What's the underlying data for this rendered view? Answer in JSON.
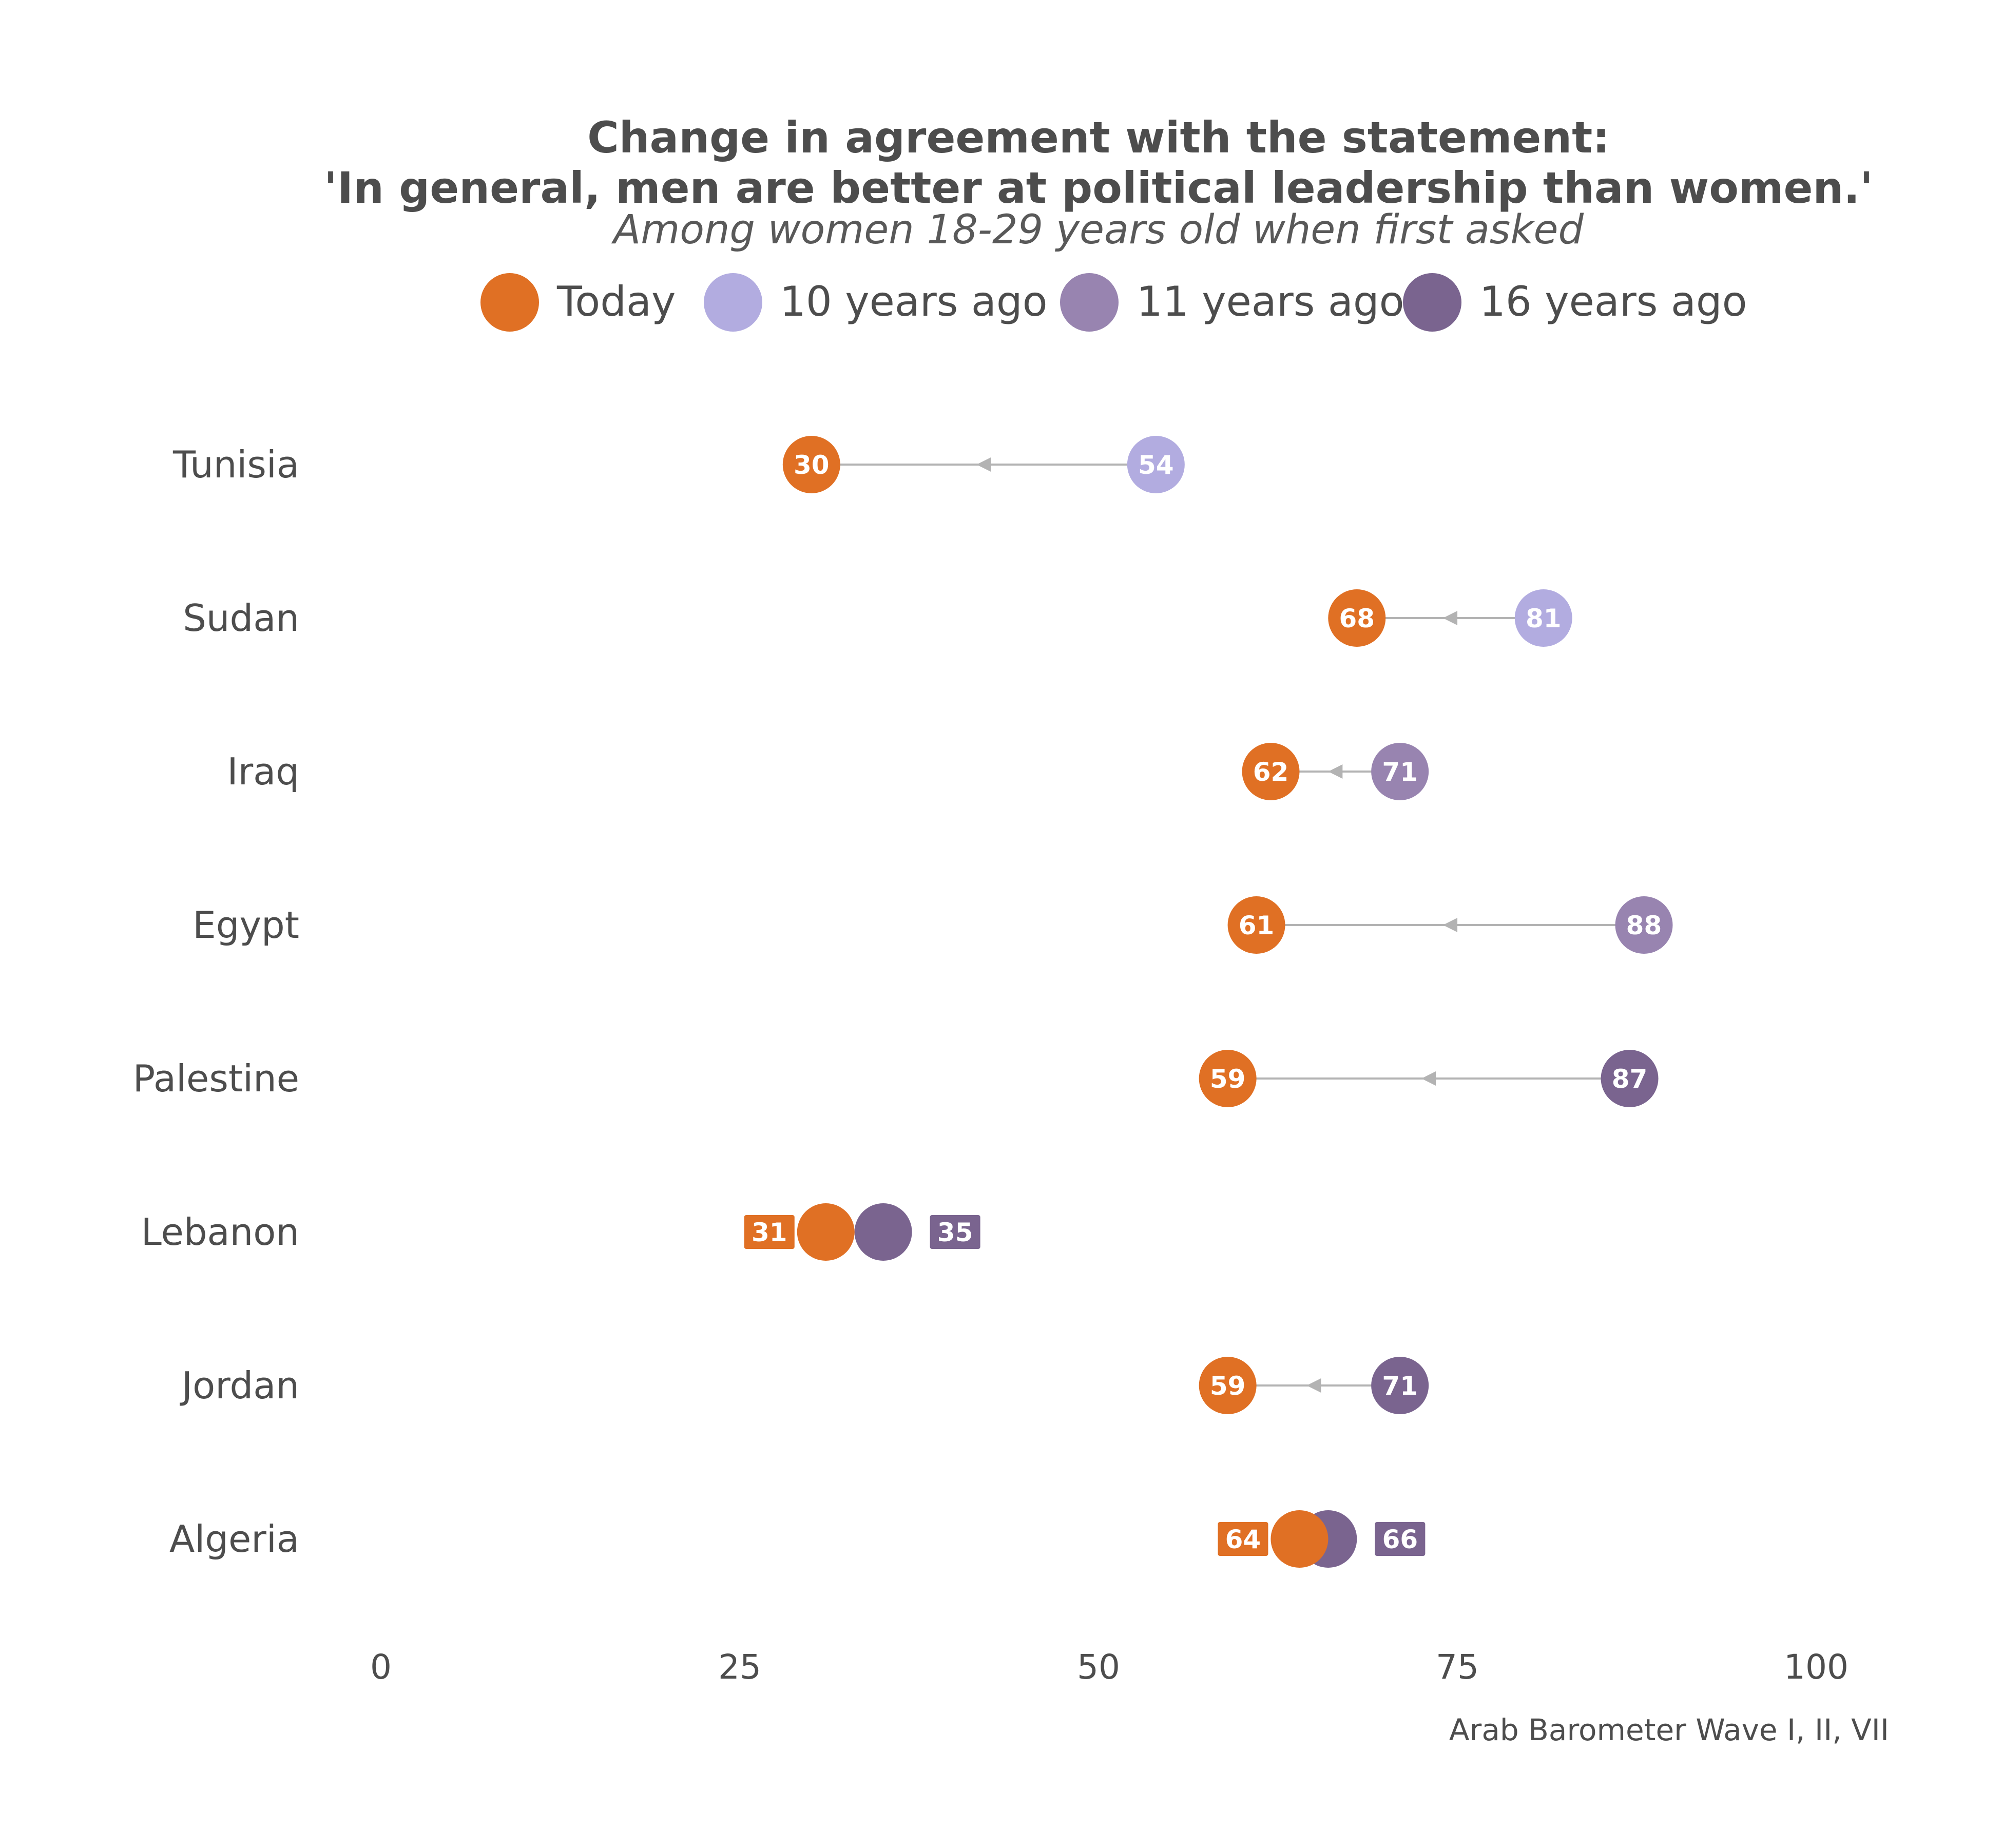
{
  "chart_data": {
    "type": "scatter",
    "title_lines": [
      "Change in agreement with the statement:",
      "'In general, men are better at political leadership than women.'"
    ],
    "subtitle": "Among women 18-29 years old when first asked",
    "caption": "Arab Barometer Wave I, II, VII",
    "xlim": [
      0,
      100
    ],
    "x_ticks": [
      "0",
      "25",
      "50",
      "75",
      "100"
    ],
    "x_tick_values": [
      0,
      25,
      50,
      75,
      100
    ],
    "grid": false,
    "legend_position": "top",
    "legend": [
      {
        "name": "Today",
        "color": "#e07024"
      },
      {
        "name": "10 years ago",
        "color": "#b2ace0"
      },
      {
        "name": "11 years ago",
        "color": "#9884b0"
      },
      {
        "name": "16 years ago",
        "color": "#7a648f"
      }
    ],
    "rows": [
      {
        "country": "Tunisia",
        "today": 30,
        "past": 54,
        "past_period": "10 years ago"
      },
      {
        "country": "Sudan",
        "today": 68,
        "past": 81,
        "past_period": "10 years ago"
      },
      {
        "country": "Iraq",
        "today": 62,
        "past": 71,
        "past_period": "11 years ago"
      },
      {
        "country": "Egypt",
        "today": 61,
        "past": 88,
        "past_period": "11 years ago"
      },
      {
        "country": "Palestine",
        "today": 59,
        "past": 87,
        "past_period": "16 years ago"
      },
      {
        "country": "Lebanon",
        "today": 31,
        "past": 35,
        "past_period": "16 years ago"
      },
      {
        "country": "Jordan",
        "today": 59,
        "past": 71,
        "past_period": "16 years ago"
      },
      {
        "country": "Algeria",
        "today": 64,
        "past": 66,
        "past_period": "16 years ago"
      }
    ],
    "arrow_color": "#b3b3b3"
  }
}
